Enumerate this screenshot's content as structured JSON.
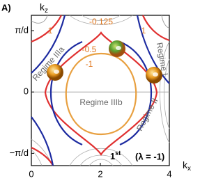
{
  "figure_label": "A)",
  "chart_data": {
    "type": "contour",
    "x_label": "k",
    "x_label_sub": "x",
    "y_label": "k",
    "y_label_sub": "z",
    "xlim": [
      0,
      4
    ],
    "ylim": [
      -1.2,
      1.25
    ],
    "xticks": [
      0,
      2,
      4
    ],
    "yticks": [
      {
        "value": -1,
        "label": "−π/d"
      },
      0,
      {
        "value": 1,
        "label": "π/d"
      }
    ],
    "zero_line": true,
    "levels": [
      {
        "value": -0.125,
        "color": "#e03030"
      },
      {
        "value": -0.5,
        "color": "#1c2aa0"
      },
      {
        "value": -1,
        "color": "#e8a040"
      },
      {
        "value": 1,
        "color": "#9a9a9a"
      }
    ],
    "level_label_color": "#e07820",
    "regions": [
      "Regime IIIa",
      "Regime I",
      "Regime II",
      "Regime IIIb"
    ],
    "order": "1",
    "order_sup": "st",
    "lambda_note": "(λ = -1)"
  }
}
